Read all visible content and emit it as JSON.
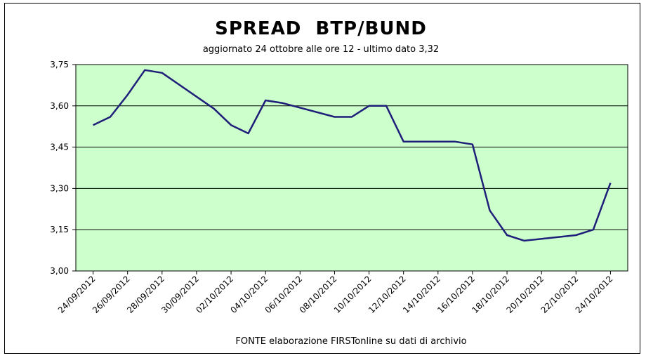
{
  "chart_data": {
    "type": "line",
    "title": "SPREAD  BTP/BUND",
    "subtitle": "aggiornato 24 ottobre alle ore 12 - ultimo dato 3,32",
    "source": "FONTE elaborazione FIRSTonline su dati di archivio",
    "xlabel": "",
    "ylabel": "",
    "ylim": [
      3.0,
      3.75
    ],
    "yticks": [
      "3,00",
      "3,15",
      "3,30",
      "3,45",
      "3,60",
      "3,75"
    ],
    "ytick_values": [
      3.0,
      3.15,
      3.3,
      3.45,
      3.6,
      3.75
    ],
    "x_tick_labels": [
      "24/09/2012",
      "26/09/2012",
      "28/09/2012",
      "30/09/2012",
      "02/10/2012",
      "04/10/2012",
      "06/10/2012",
      "08/10/2012",
      "10/10/2012",
      "12/10/2012",
      "14/10/2012",
      "16/10/2012",
      "18/10/2012",
      "20/10/2012",
      "22/10/2012",
      "24/10/2012"
    ],
    "x": [
      "24/09/2012",
      "25/09/2012",
      "26/09/2012",
      "27/09/2012",
      "28/09/2012",
      "01/10/2012",
      "02/10/2012",
      "03/10/2012",
      "04/10/2012",
      "05/10/2012",
      "08/10/2012",
      "09/10/2012",
      "10/10/2012",
      "11/10/2012",
      "12/10/2012",
      "15/10/2012",
      "16/10/2012",
      "17/10/2012",
      "18/10/2012",
      "19/10/2012",
      "22/10/2012",
      "23/10/2012",
      "24/10/2012"
    ],
    "series": [
      {
        "values": [
          3.53,
          3.56,
          3.64,
          3.73,
          3.72,
          3.59,
          3.53,
          3.5,
          3.62,
          3.61,
          3.56,
          3.56,
          3.6,
          3.6,
          3.47,
          3.47,
          3.46,
          3.22,
          3.13,
          3.11,
          3.13,
          3.15,
          3.32
        ],
        "color": "#1f1f7a"
      }
    ],
    "plot_background": "#ccffcc",
    "grid": true,
    "legend": "none"
  }
}
